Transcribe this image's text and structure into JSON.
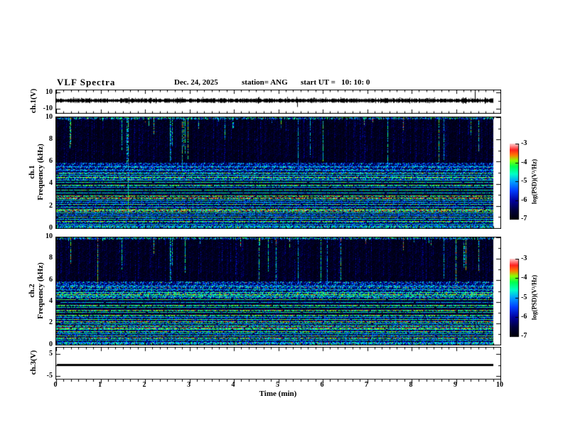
{
  "header": {
    "title": "VLF Spectra",
    "date": "Dec. 24, 2025",
    "station": "station= ANG",
    "start_ut": "start UT =   10: 10: 0"
  },
  "xaxis": {
    "label": "Time (min)",
    "ticks": [
      "0",
      "1",
      "2",
      "3",
      "4",
      "5",
      "6",
      "7",
      "8",
      "9",
      "10"
    ]
  },
  "panels": {
    "ch1_volt": {
      "label": "ch.1(V)",
      "yticks": [
        "10",
        "-10"
      ]
    },
    "ch1_spec": {
      "label1": "ch.1",
      "label2": "Frequency (kHz)",
      "yticks": [
        "10",
        "8",
        "6",
        "4",
        "2",
        "0"
      ]
    },
    "ch2_spec": {
      "label1": "ch.2",
      "label2": "Frequency (kHz)",
      "yticks": [
        "10",
        "8",
        "6",
        "4",
        "2",
        "0"
      ]
    },
    "ch3_volt": {
      "label": "ch.3(V)",
      "yticks": [
        "5",
        "-5"
      ]
    }
  },
  "colorbars": {
    "label": "log(PSD)(V²/Hz)",
    "ticks": [
      "-3",
      "-4",
      "-5",
      "-6",
      "-7"
    ]
  },
  "chart_data": {
    "type": "heatmap",
    "title": "VLF Spectra",
    "date": "Dec. 24, 2025",
    "station": "ANG",
    "start_ut": "10:10:0",
    "x": {
      "label": "Time (min)",
      "range": [
        0,
        10
      ],
      "data_extent_min": 9.83,
      "major_tick_min": 1,
      "minor_tick_min": 0.1667
    },
    "colorbar": {
      "label": "log(PSD)(V²/Hz)",
      "range": [
        -7,
        -3
      ],
      "orientation": "vertical",
      "palette_stops": [
        [
          0.0,
          "#000008"
        ],
        [
          0.12,
          "#00003c"
        ],
        [
          0.25,
          "#0000a0"
        ],
        [
          0.38,
          "#003cff"
        ],
        [
          0.5,
          "#00a0ff"
        ],
        [
          0.6,
          "#00ffc8"
        ],
        [
          0.7,
          "#00ff50"
        ],
        [
          0.78,
          "#8cff00"
        ],
        [
          0.85,
          "#ff7800"
        ],
        [
          0.92,
          "#ff1e1e"
        ],
        [
          1.0,
          "#ffc8c8"
        ]
      ]
    },
    "panels": [
      {
        "id": "ch1_volt",
        "kind": "waveform",
        "ylabel": "ch.1(V)",
        "yrange": [
          -13,
          13
        ],
        "yticks": [
          10,
          -10
        ],
        "signal": {
          "type": "broadband noise",
          "mean_V": 0,
          "peak_V": 2.5,
          "spike": {
            "t_min": 9.42,
            "V": 12
          },
          "dip": {
            "t_min": 5.43,
            "V": -6
          }
        }
      },
      {
        "id": "ch1_spec",
        "kind": "spectrogram",
        "ylabel": "Frequency (kHz)",
        "yrange": [
          0,
          10
        ],
        "yticks": [
          10,
          8,
          6,
          4,
          2,
          0
        ],
        "seed": 7,
        "background_psd": {
          "0-0.25kHz": -5.0,
          "0.25-2.6kHz": -6.1,
          "2.6-4.3kHz": -6.6,
          "4.3-5.9kHz": -5.8,
          "5.9-10kHz": -6.7
        },
        "tone_bands": [
          [
            5.55,
            -5.0
          ],
          [
            5.2,
            -4.9
          ],
          [
            4.95,
            -4.2
          ],
          [
            4.75,
            -4.5
          ],
          [
            4.55,
            -4.0
          ],
          [
            4.35,
            -4.8
          ],
          [
            4.15,
            -4.4
          ],
          [
            3.9,
            -4.1
          ],
          [
            3.65,
            -4.9
          ],
          [
            3.4,
            -4.3
          ],
          [
            3.15,
            -4.6
          ],
          [
            2.9,
            -3.9
          ],
          [
            2.7,
            -3.5
          ],
          [
            2.5,
            -4.4
          ],
          [
            2.3,
            -4.8
          ],
          [
            2.1,
            -4.2
          ],
          [
            1.9,
            -4.5
          ],
          [
            1.7,
            -3.9
          ],
          [
            1.55,
            -3.6
          ],
          [
            1.35,
            -4.3
          ],
          [
            1.15,
            -4.8
          ],
          [
            0.95,
            -4.2
          ],
          [
            0.75,
            -4.5
          ],
          [
            0.55,
            -4.0
          ],
          [
            0.35,
            -4.7
          ]
        ],
        "sferic_streaks": {
          "count": 175,
          "top_kHz": 10,
          "typical_bottom_kHz": 5,
          "full_height_fraction": 0.08,
          "psd": -4.5,
          "red_core_fraction": 0.1
        }
      },
      {
        "id": "ch2_spec",
        "kind": "spectrogram",
        "ylabel": "Frequency (kHz)",
        "yrange": [
          0,
          10
        ],
        "yticks": [
          10,
          8,
          6,
          4,
          2,
          0
        ],
        "seed": 13,
        "background_psd": {
          "0-0.25kHz": -5.0,
          "0.25-2.6kHz": -6.2,
          "2.6-4.3kHz": -6.7,
          "4.3-5.9kHz": -5.9,
          "5.9-10kHz": -6.8
        },
        "tone_bands": [
          [
            5.5,
            -5.0
          ],
          [
            5.15,
            -4.8
          ],
          [
            4.9,
            -4.3
          ],
          [
            4.65,
            -4.0
          ],
          [
            4.45,
            -4.6
          ],
          [
            4.2,
            -4.2
          ],
          [
            3.95,
            -4.8
          ],
          [
            3.7,
            -4.1
          ],
          [
            3.45,
            -4.5
          ],
          [
            3.2,
            -3.9
          ],
          [
            3.0,
            -4.4
          ],
          [
            2.75,
            -4.0
          ],
          [
            2.55,
            -4.7
          ],
          [
            2.35,
            -4.2
          ],
          [
            2.15,
            -3.8
          ],
          [
            1.95,
            -4.5
          ],
          [
            1.75,
            -4.1
          ],
          [
            1.55,
            -3.7
          ],
          [
            1.4,
            -4.4
          ],
          [
            1.2,
            -4.0
          ],
          [
            1.0,
            -4.6
          ],
          [
            0.8,
            -4.2
          ],
          [
            0.6,
            -3.9
          ],
          [
            0.4,
            -4.5
          ]
        ],
        "sferic_streaks": {
          "count": 170,
          "top_kHz": 10,
          "typical_bottom_kHz": 5,
          "full_height_fraction": 0.08,
          "psd": -4.5,
          "red_core_fraction": 0.11
        }
      },
      {
        "id": "ch3_volt",
        "kind": "line",
        "ylabel": "ch.3(V)",
        "yrange": [
          -7,
          7
        ],
        "yticks": [
          5,
          -5
        ],
        "signal": {
          "type": "constant",
          "value_V": 0,
          "line_width_V": 0.6
        }
      }
    ]
  }
}
